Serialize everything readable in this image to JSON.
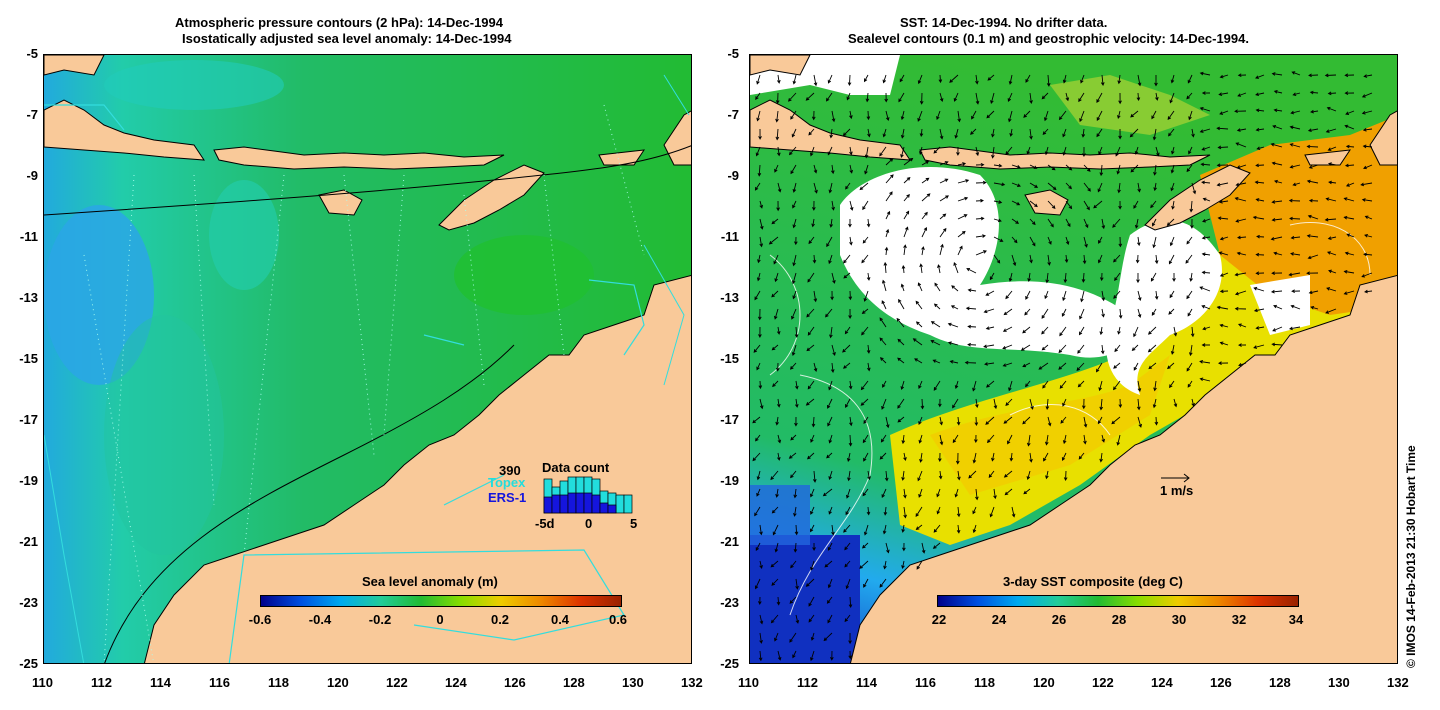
{
  "left_panel": {
    "title_line1": "Atmospheric pressure contours (2 hPa): 14-Dec-1994",
    "title_line2": "Isostatically adjusted sea level anomaly: 14-Dec-1994",
    "colorbar": {
      "title": "Sea level anomaly (m)",
      "ticks": [
        "-0.6",
        "-0.4",
        "-0.2",
        "0",
        "0.2",
        "0.4",
        "0.6"
      ]
    },
    "data_count": {
      "title": "Data count",
      "max_label": "390",
      "topex_label": "Topex",
      "ers1_label": "ERS-1",
      "x_ticks": [
        "-5d",
        "0",
        "5"
      ],
      "topex_color": "#22dddd",
      "ers1_color": "#1515dd"
    }
  },
  "right_panel": {
    "title_line1": "SST: 14-Dec-1994. No drifter data.",
    "title_line2": "Sealevel contours (0.1 m) and geostrophic velocity: 14-Dec-1994.",
    "colorbar": {
      "title": "3-day SST composite (deg C)",
      "ticks": [
        "22",
        "24",
        "26",
        "28",
        "30",
        "32",
        "34"
      ]
    },
    "velocity_scale_label": "1 m/s"
  },
  "axes": {
    "x_ticks": [
      "110",
      "112",
      "114",
      "116",
      "118",
      "120",
      "122",
      "124",
      "126",
      "128",
      "130",
      "132"
    ],
    "y_ticks": [
      "-5",
      "-7",
      "-9",
      "-11",
      "-13",
      "-15",
      "-17",
      "-19",
      "-21",
      "-23",
      "-25"
    ]
  },
  "credit": "© IMOS 14-Feb-2013 21:30 Hobart Time",
  "colors": {
    "land": "#f9c999",
    "ocean_green": "#22bb33",
    "ocean_cyan": "#22ccaa",
    "anomaly_blue": "#2299ee",
    "sst_yellow": "#e8e000",
    "sst_orange": "#f0a000",
    "sst_blue": "#1030c0"
  }
}
